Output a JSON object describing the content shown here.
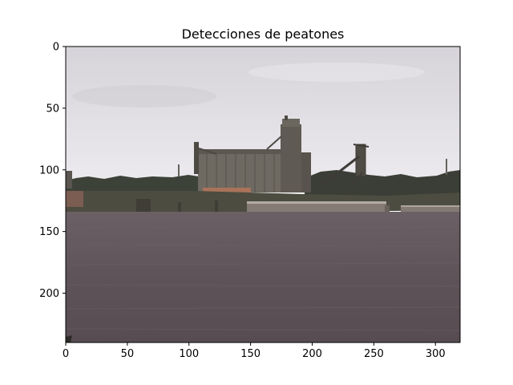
{
  "figure": {
    "title": "Detecciones de peatones",
    "x_ticks": [
      "0",
      "50",
      "100",
      "150",
      "200",
      "250",
      "300"
    ],
    "y_ticks": [
      "0",
      "50",
      "100",
      "150",
      "200"
    ],
    "x_tick_values": [
      0,
      50,
      100,
      150,
      200,
      250,
      300
    ],
    "y_tick_values": [
      0,
      50,
      100,
      150,
      200
    ],
    "x_range": [
      0,
      320
    ],
    "y_range": [
      0,
      240
    ],
    "y_inverted": true,
    "colors": {
      "sky_top": "#d9d7dc",
      "sky_bottom": "#ecebee",
      "water": "#5e5459",
      "treeline": "#3b3f36",
      "building": "#6d6860",
      "shore": "#4a4a3e",
      "barge": "#8a8079"
    }
  }
}
